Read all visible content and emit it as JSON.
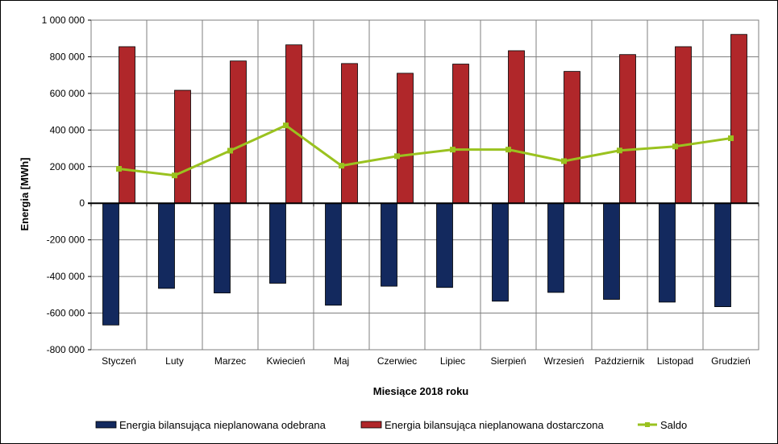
{
  "chart_data": {
    "type": "bar",
    "categories": [
      "Styczeń",
      "Luty",
      "Marzec",
      "Kwiecień",
      "Maj",
      "Czerwiec",
      "Lipiec",
      "Sierpień",
      "Wrzesień",
      "Październik",
      "Listopad",
      "Grudzień"
    ],
    "series": [
      {
        "name": "Energia bilansująca nieplanowana odebrana",
        "type": "bar",
        "color": "#13295e",
        "values": [
          -665000,
          -465000,
          -490000,
          -437000,
          -557000,
          -453000,
          -460000,
          -535000,
          -487000,
          -525000,
          -540000,
          -565000
        ]
      },
      {
        "name": "Energia bilansująca nieplanowana dostarczona",
        "type": "bar",
        "color": "#b0272a",
        "values": [
          855000,
          617000,
          777000,
          865000,
          763000,
          710000,
          760000,
          833000,
          720000,
          812000,
          855000,
          922000
        ]
      },
      {
        "name": "Saldo",
        "type": "line",
        "color": "#9ac21f",
        "values": [
          188000,
          152000,
          287000,
          425000,
          205000,
          257000,
          293000,
          293000,
          230000,
          288000,
          310000,
          355000
        ]
      }
    ],
    "xlabel": "Miesiące 2018 roku",
    "ylabel": "Energia [MWh]",
    "ylim": [
      -800000,
      1000000
    ],
    "yticks": [
      -800000,
      -600000,
      -400000,
      -200000,
      0,
      200000,
      400000,
      600000,
      800000,
      1000000
    ],
    "ytick_labels": [
      "-800 000",
      "-600 000",
      "-400 000",
      "-200 000",
      "0",
      "200 000",
      "400 000",
      "600 000",
      "800 000",
      "1 000 000"
    ],
    "grid": true,
    "legend": "bottom"
  }
}
